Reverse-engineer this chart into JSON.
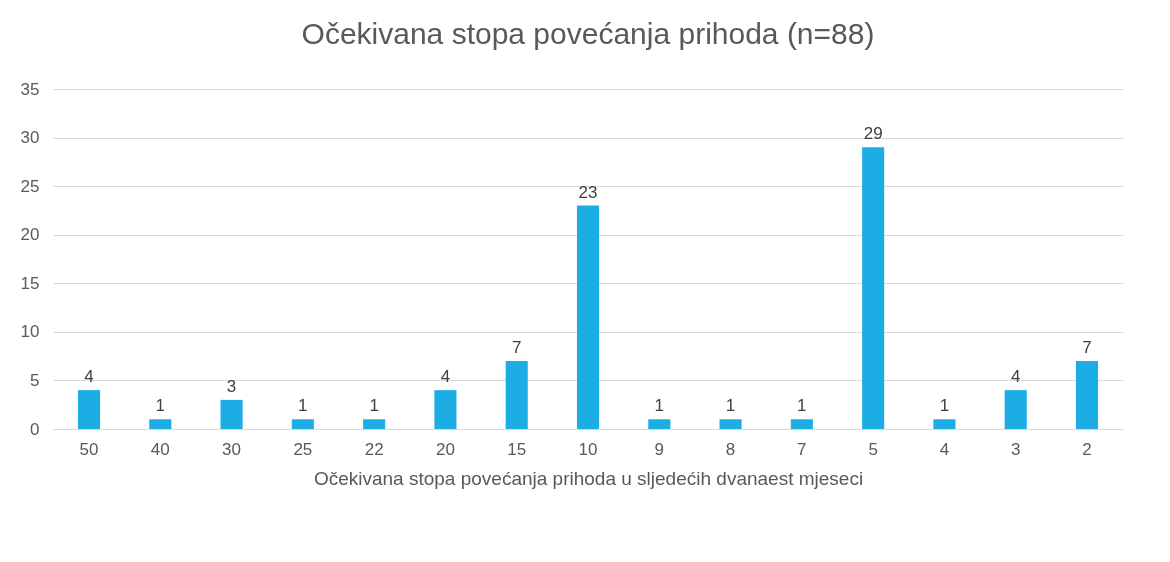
{
  "chart_data": {
    "type": "bar",
    "title": "Očekivana stopa povećanja prihoda (n=88)",
    "xlabel": "Očekivana stopa povećanja prihoda u sljedećih dvanaest mjeseci",
    "categories": [
      "50",
      "40",
      "30",
      "25",
      "22",
      "20",
      "15",
      "10",
      "9",
      "8",
      "7",
      "5",
      "4",
      "3",
      "2"
    ],
    "values": [
      4,
      1,
      3,
      1,
      1,
      4,
      7,
      23,
      1,
      1,
      1,
      29,
      1,
      4,
      7
    ],
    "color": "#1cade4",
    "ylim": [
      0,
      35
    ],
    "yticks": [
      0,
      5,
      10,
      15,
      20,
      25,
      30,
      35
    ],
    "grid": "y",
    "data_labels": true
  }
}
